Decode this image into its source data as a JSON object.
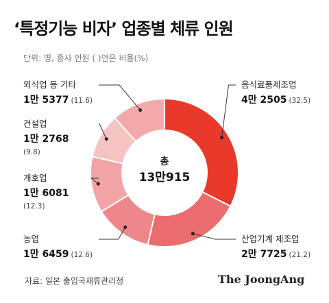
{
  "title": "‘특정기능 비자’ 업종별 체류 인원",
  "subtitle": "단위: 명, 종사 인원  ( )안은 비율(%)",
  "source": "자료: 일본 출입국재류관리청",
  "brand": "The JoongAng",
  "chart_data": {
    "type": "pie",
    "title": "‘특정기능 비자’ 업종별 체류 인원",
    "center_label": [
      "총",
      "13만915"
    ],
    "total": 130915,
    "slices": [
      {
        "name": "음식료품제조업",
        "value_label": "4만 2505",
        "value": 42505,
        "pct_label": "(32.5)",
        "percent": 32.5,
        "color": "#e8392b"
      },
      {
        "name": "산업기계 제조업",
        "value_label": "2만 7725",
        "value": 27725,
        "pct_label": "(21.2)",
        "percent": 21.2,
        "color": "#ea6c6f"
      },
      {
        "name": "농업",
        "value_label": "1만 6459",
        "value": 16459,
        "pct_label": "(12.6)",
        "percent": 12.6,
        "color": "#ee878b"
      },
      {
        "name": "개호업",
        "value_label": "1만 6081",
        "value": 16081,
        "pct_label": "(12.3)",
        "percent": 12.3,
        "color": "#f2a4a6"
      },
      {
        "name": "건설업",
        "value_label": "1만 2768",
        "value": 12768,
        "pct_label": "(9.8)",
        "percent": 9.8,
        "color": "#f6c3c3"
      },
      {
        "name": "외식업 등 기타",
        "value_label": "1만 5377",
        "value": 15377,
        "pct_label": "(11.6)",
        "percent": 11.6,
        "color": "#f3a9ab"
      }
    ]
  }
}
